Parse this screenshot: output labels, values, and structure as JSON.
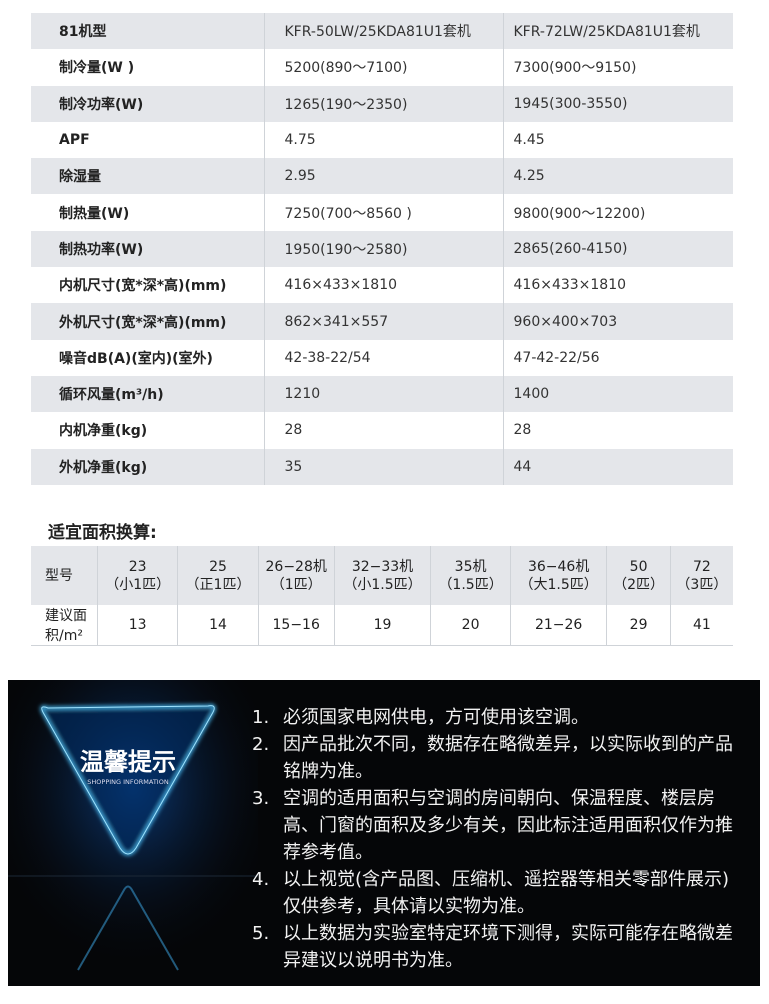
{
  "spec_table": {
    "header": [
      "81机型",
      "KFR-50LW/25KDA81U1套机",
      "KFR-72LW/25KDA81U1套机"
    ],
    "rows": [
      [
        "制冷量(W )",
        "5200(890～7100)",
        "7300(900～9150)"
      ],
      [
        "制冷功率(W)",
        "1265(190～2350)",
        "1945(300-3550)"
      ],
      [
        "APF",
        "4.75",
        "4.45"
      ],
      [
        "除湿量",
        "2.95",
        "4.25"
      ],
      [
        "制热量(W)",
        "7250(700～8560 )",
        "9800(900～12200)"
      ],
      [
        "制热功率(W)",
        "1950(190～2580)",
        "2865(260-4150)"
      ],
      [
        "内机尺寸(宽*深*高)(mm)",
        "416×433×1810",
        "416×433×1810"
      ],
      [
        "外机尺寸(宽*深*高)(mm)",
        "862×341×557",
        "960×400×703"
      ],
      [
        "噪音dB(A)(室内)(室外)",
        "42-38-22/54",
        "47-42-22/56"
      ],
      [
        "循环风量(m³/h)",
        "1210",
        "1400"
      ],
      [
        "内机净重(kg)",
        "28",
        "28"
      ],
      [
        "外机净重(kg)",
        "35",
        "44"
      ]
    ]
  },
  "area_table": {
    "title": "适宜面积换算:",
    "header_label": "型号",
    "models": [
      {
        "model": "23",
        "hp": "（小1匹）"
      },
      {
        "model": "25",
        "hp": "（正1匹）"
      },
      {
        "model": "26−28机",
        "hp": "（1匹）"
      },
      {
        "model": "32−33机",
        "hp": "（小1.5匹）"
      },
      {
        "model": "35机",
        "hp": "（1.5匹）"
      },
      {
        "model": "36−46机",
        "hp": "（大1.5匹）"
      },
      {
        "model": "50",
        "hp": "（2匹）"
      },
      {
        "model": "72",
        "hp": "（3匹）"
      }
    ],
    "row_label": "建议面积/m²",
    "areas": [
      "13",
      "14",
      "15−16",
      "19",
      "20",
      "21−26",
      "29",
      "41"
    ]
  },
  "notice": {
    "badge_title": "温馨提示",
    "badge_subtitle": "SHOPPING INFORMATION",
    "accent": "#2aa8ff",
    "items": [
      {
        "n": "1.",
        "text": "必须国家电网供电，方可使用该空调。"
      },
      {
        "n": "2.",
        "text": "因产品批次不同，数据存在略微差异，以实际收到的产品铭牌为准。"
      },
      {
        "n": "3.",
        "text": "空调的适用面积与空调的房间朝向、保温程度、楼层房高、门窗的面积及多少有关，因此标注适用面积仅作为推荐参考值。"
      },
      {
        "n": "4.",
        "text": "以上视觉(含产品图、压缩机、遥控器等相关零部件展示)仅供参考，具体请以实物为准。"
      },
      {
        "n": "5.",
        "text": "以上数据为实验室特定环境下测得，实际可能存在略微差异建议以说明书为准。"
      }
    ]
  }
}
